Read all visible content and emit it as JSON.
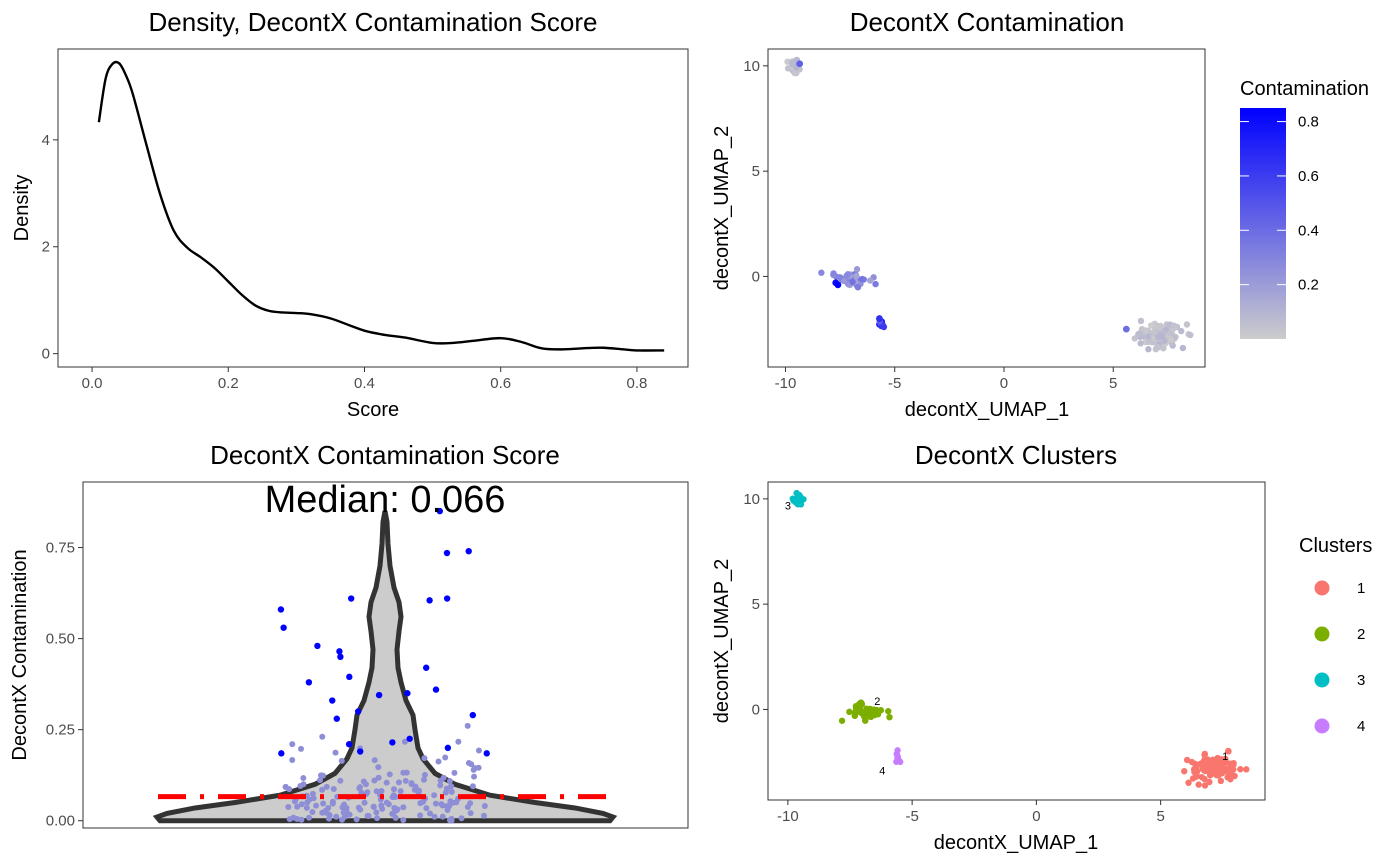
{
  "chart_data": [
    {
      "type": "line",
      "title": "Density, DecontX Contamination Score",
      "xlabel": "Score",
      "ylabel": "Density",
      "xlim": [
        -0.05,
        0.875
      ],
      "ylim": [
        -0.25,
        5.7
      ],
      "xticks": [
        0.0,
        0.2,
        0.4,
        0.6,
        0.8
      ],
      "xtick_labels": [
        "0.0",
        "0.2",
        "0.4",
        "0.6",
        "0.8"
      ],
      "yticks": [
        0,
        2,
        4
      ],
      "ytick_labels": [
        "0",
        "2",
        "4"
      ],
      "grid": false,
      "series": [
        {
          "color": "#000000",
          "x": [
            0.01,
            0.02,
            0.03,
            0.04,
            0.05,
            0.06,
            0.08,
            0.1,
            0.12,
            0.14,
            0.16,
            0.18,
            0.2,
            0.22,
            0.24,
            0.26,
            0.28,
            0.3,
            0.32,
            0.35,
            0.38,
            0.4,
            0.43,
            0.46,
            0.5,
            0.53,
            0.56,
            0.6,
            0.63,
            0.66,
            0.69,
            0.72,
            0.75,
            0.78,
            0.8,
            0.84
          ],
          "y": [
            4.33,
            5.15,
            5.42,
            5.43,
            5.2,
            4.85,
            3.9,
            2.98,
            2.3,
            1.98,
            1.8,
            1.6,
            1.35,
            1.1,
            0.9,
            0.8,
            0.77,
            0.76,
            0.74,
            0.66,
            0.52,
            0.43,
            0.35,
            0.3,
            0.2,
            0.2,
            0.24,
            0.29,
            0.22,
            0.1,
            0.08,
            0.1,
            0.11,
            0.08,
            0.06,
            0.06
          ]
        }
      ]
    },
    {
      "type": "scatter",
      "title": "DecontX Contamination",
      "xlabel": "decontX_UMAP_1",
      "ylabel": "decontX_UMAP_2",
      "xlim": [
        -10.8,
        9.2
      ],
      "ylim": [
        -4.3,
        10.8
      ],
      "xticks": [
        -10,
        -5,
        0,
        5
      ],
      "xtick_labels": [
        "-10",
        "-5",
        "0",
        "5"
      ],
      "yticks": [
        0,
        5,
        10
      ],
      "ytick_labels": [
        "0",
        "5",
        "10"
      ],
      "grid": false,
      "color_scale": {
        "low": "#cccccc",
        "high": "#0000ff",
        "min": 0.0,
        "max": 0.85
      },
      "legend": {
        "title": "Contamination",
        "placement": "right",
        "breaks": [
          0.2,
          0.4,
          0.6,
          0.8
        ],
        "labels": [
          "0.2",
          "0.4",
          "0.6",
          "0.8"
        ]
      },
      "clusters": [
        {
          "center": [
            7.1,
            -2.8
          ],
          "spread": [
            0.9,
            0.45
          ],
          "n": 110,
          "contamination_range": [
            0.0,
            0.1
          ]
        },
        {
          "center": [
            -7.0,
            -0.1
          ],
          "spread": [
            0.65,
            0.4
          ],
          "n": 45,
          "contamination_range": [
            0.15,
            0.4
          ]
        },
        {
          "center": [
            -9.6,
            9.95
          ],
          "spread": [
            0.2,
            0.2
          ],
          "n": 28,
          "contamination_range": [
            0.0,
            0.1
          ]
        },
        {
          "center": [
            -5.6,
            -2.25
          ],
          "spread": [
            0.1,
            0.2
          ],
          "n": 8,
          "contamination_range": [
            0.45,
            0.75
          ]
        }
      ],
      "highlight_points": [
        {
          "x": -7.7,
          "y": -0.3,
          "contamination": 0.82
        },
        {
          "x": -7.6,
          "y": -0.4,
          "contamination": 0.85
        },
        {
          "x": -5.7,
          "y": -2.0,
          "contamination": 0.65
        },
        {
          "x": -9.35,
          "y": 10.1,
          "contamination": 0.45
        },
        {
          "x": 5.6,
          "y": -2.5,
          "contamination": 0.4
        }
      ]
    },
    {
      "type": "violin",
      "title": "DecontX Contamination Score",
      "xlabel": "",
      "ylabel": "DecontX Contamination",
      "annotation": "Median: 0.066",
      "median": 0.066,
      "ylim": [
        -0.02,
        0.93
      ],
      "yticks": [
        0.0,
        0.25,
        0.5,
        0.75
      ],
      "ytick_labels": [
        "0.00",
        "0.25",
        "0.50",
        "0.75"
      ],
      "grid": false,
      "outlier_points": [
        0.74,
        0.735,
        0.61,
        0.605,
        0.61,
        0.58,
        0.53,
        0.48,
        0.465,
        0.45,
        0.42,
        0.395,
        0.38,
        0.36,
        0.35,
        0.345,
        0.33,
        0.3,
        0.29,
        0.28,
        0.225,
        0.215,
        0.21,
        0.2,
        0.19,
        0.185,
        0.185,
        0.85
      ],
      "inlier_range": [
        0.0,
        0.35
      ],
      "inlier_count": 170
    },
    {
      "type": "scatter",
      "title": "DecontX Clusters",
      "xlabel": "decontX_UMAP_1",
      "ylabel": "decontX_UMAP_2",
      "xlim": [
        -10.8,
        9.2
      ],
      "ylim": [
        -4.3,
        10.8
      ],
      "xticks": [
        -10,
        -5,
        0,
        5
      ],
      "xtick_labels": [
        "-10",
        "-5",
        "0",
        "5"
      ],
      "yticks": [
        0,
        5,
        10
      ],
      "ytick_labels": [
        "0",
        "5",
        "10"
      ],
      "grid": false,
      "legend": {
        "title": "Clusters",
        "placement": "right",
        "entries": [
          "1",
          "2",
          "3",
          "4"
        ]
      },
      "clusters": [
        {
          "name": "1",
          "color": "#f8766d",
          "center": [
            7.1,
            -2.8
          ],
          "spread": [
            0.9,
            0.45
          ],
          "n": 110,
          "label_at": [
            7.6,
            -2.4
          ]
        },
        {
          "name": "2",
          "color": "#7cae00",
          "center": [
            -7.0,
            -0.1
          ],
          "spread": [
            0.65,
            0.4
          ],
          "n": 45,
          "label_at": [
            -6.4,
            0.2
          ]
        },
        {
          "name": "3",
          "color": "#00bfc4",
          "center": [
            -9.6,
            9.95
          ],
          "spread": [
            0.2,
            0.2
          ],
          "n": 28,
          "label_at": [
            -10.0,
            9.5
          ]
        },
        {
          "name": "4",
          "color": "#c77cff",
          "center": [
            -5.6,
            -2.25
          ],
          "spread": [
            0.1,
            0.2
          ],
          "n": 8,
          "label_at": [
            -6.2,
            -3.1
          ]
        }
      ]
    }
  ]
}
